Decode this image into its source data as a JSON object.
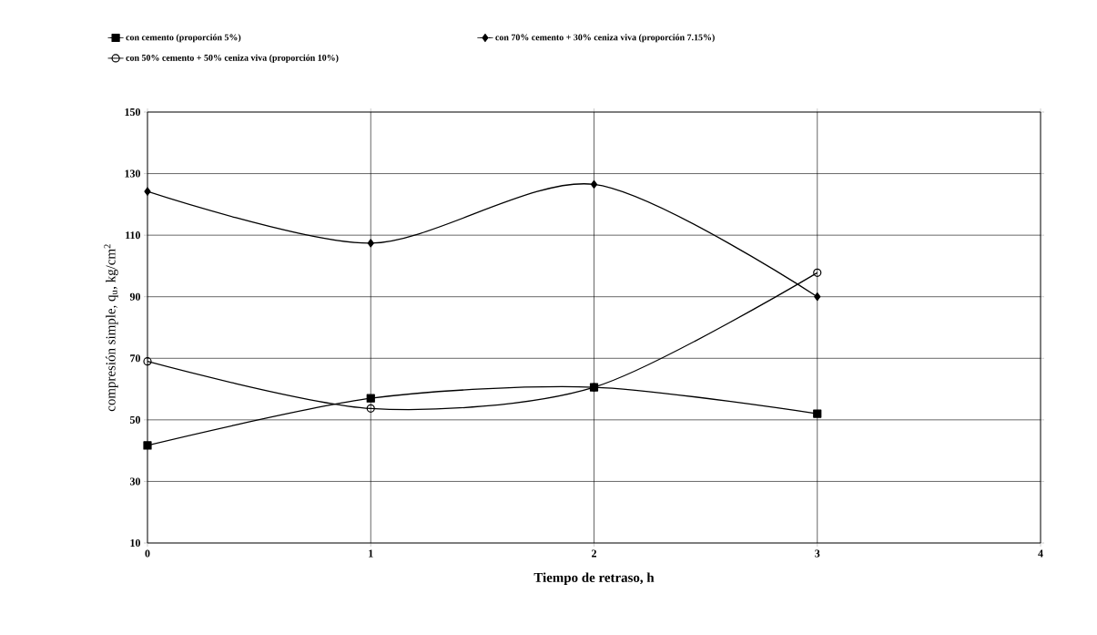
{
  "chart_data": {
    "type": "line",
    "xlabel": "Tiempo de retraso, h",
    "ylabel": "compresión simple, q$_{u}$, kg/cm$^{2}$",
    "x": [
      0,
      1,
      2,
      3
    ],
    "xlim": [
      0,
      4
    ],
    "xticks": [
      0,
      1,
      2,
      3,
      4
    ],
    "ylim": [
      10,
      150
    ],
    "yticks": [
      10,
      30,
      50,
      70,
      90,
      110,
      130,
      150
    ],
    "grid": true,
    "legend": "top",
    "line_style": "solid",
    "series": [
      {
        "name": "con cemento (proporción 5%)",
        "color": "#000000",
        "marker": "square",
        "values": [
          41.7,
          57,
          60.6,
          52
        ]
      },
      {
        "name": "con 70% cemento + 30% ceniza viva (proporción 7.15%)",
        "color": "#000000",
        "marker": "diamond",
        "values": [
          124.2,
          107.4,
          126.5,
          90
        ]
      },
      {
        "name": "con 50% cemento + 50% ceniza viva (proporción 10%)",
        "color": "#000000",
        "marker": "circle",
        "values": [
          69,
          53.7,
          60.6,
          97.8
        ]
      }
    ]
  }
}
